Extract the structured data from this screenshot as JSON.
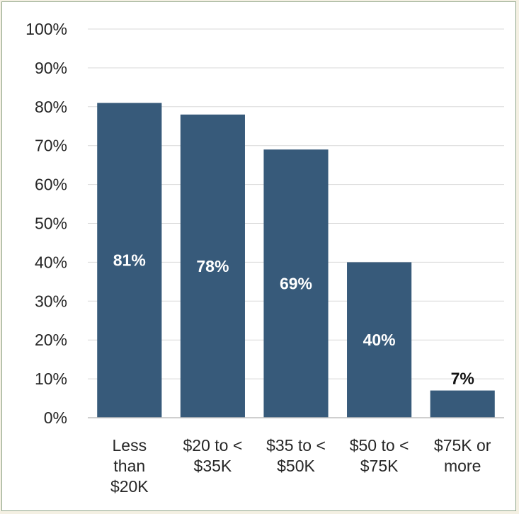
{
  "chart_data": {
    "type": "bar",
    "categories": [
      [
        "Less",
        "than",
        "$20K"
      ],
      [
        "$20 to <",
        "$35K"
      ],
      [
        "$35 to <",
        "$50K"
      ],
      [
        "$50 to <",
        "$75K"
      ],
      [
        "$75K or",
        "more"
      ]
    ],
    "values": [
      81,
      78,
      69,
      40,
      7
    ],
    "data_labels": [
      "81%",
      "78%",
      "69%",
      "40%",
      "7%"
    ],
    "ylim": [
      0,
      100
    ],
    "yticks": [
      0,
      10,
      20,
      30,
      40,
      50,
      60,
      70,
      80,
      90,
      100
    ],
    "ytick_labels": [
      "0%",
      "10%",
      "20%",
      "30%",
      "40%",
      "50%",
      "60%",
      "70%",
      "80%",
      "90%",
      "100%"
    ],
    "grid": true,
    "legend": "none",
    "colors": {
      "bar": "#375a7a",
      "gridline": "#d9d9d9",
      "axis": "#bfbfbf",
      "background": "#ffffff",
      "outer_background": "#f4f0e3"
    }
  }
}
